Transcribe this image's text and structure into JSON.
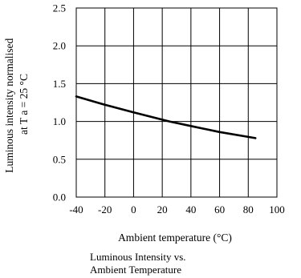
{
  "chart_data": {
    "type": "line",
    "title": "",
    "caption_lines": [
      "Luminous Intensity vs.",
      "Ambient Temperature"
    ],
    "xlabel": "Ambient temperature (°C)",
    "ylabel_lines": [
      "Luminous intensity normalised",
      "at T a = 25 °C"
    ],
    "xlim": [
      -40,
      100
    ],
    "ylim": [
      0.0,
      2.5
    ],
    "x_ticks": [
      "-40",
      "-20",
      "0",
      "20",
      "40",
      "60",
      "80",
      "100"
    ],
    "y_ticks": [
      "0.0",
      "0.5",
      "1.0",
      "1.5",
      "2.0",
      "2.5"
    ],
    "grid": true,
    "series": [
      {
        "x": [
          -40,
          -20,
          0,
          25,
          40,
          60,
          85
        ],
        "y": [
          1.33,
          1.22,
          1.12,
          1.0,
          0.94,
          0.86,
          0.78
        ],
        "color": "#000000"
      }
    ]
  }
}
